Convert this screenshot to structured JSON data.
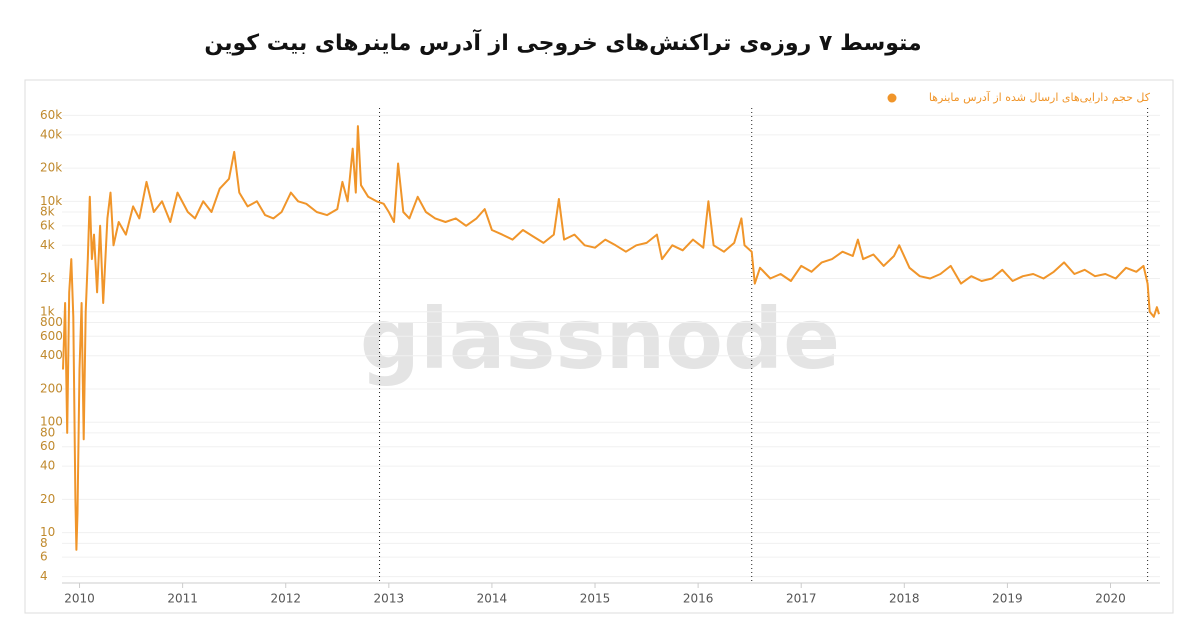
{
  "chart_data": {
    "type": "line",
    "title": "متوسط ۷ روزه‌ی تراکنش‌های خروجی از آدرس ماینرهای بیت کوین",
    "watermark": "glassnode",
    "yscale": "log",
    "grid": true,
    "legend": "top-right",
    "x": [
      2009.84,
      2009.86,
      2009.88,
      2009.9,
      2009.92,
      2009.94,
      2009.96,
      2009.97,
      2009.98,
      2010.0,
      2010.02,
      2010.04,
      2010.06,
      2010.08,
      2010.1,
      2010.12,
      2010.14,
      2010.17,
      2010.2,
      2010.23,
      2010.27,
      2010.3,
      2010.33,
      2010.38,
      2010.45,
      2010.52,
      2010.58,
      2010.65,
      2010.72,
      2010.8,
      2010.88,
      2010.95,
      2011.05,
      2011.12,
      2011.2,
      2011.28,
      2011.36,
      2011.45,
      2011.5,
      2011.55,
      2011.63,
      2011.72,
      2011.8,
      2011.88,
      2011.96,
      2012.05,
      2012.12,
      2012.2,
      2012.3,
      2012.4,
      2012.5,
      2012.55,
      2012.6,
      2012.65,
      2012.68,
      2012.7,
      2012.73,
      2012.8,
      2012.88,
      2012.95,
      2013.0,
      2013.05,
      2013.09,
      2013.14,
      2013.2,
      2013.28,
      2013.36,
      2013.45,
      2013.55,
      2013.65,
      2013.75,
      2013.85,
      2013.93,
      2014.0,
      2014.1,
      2014.2,
      2014.3,
      2014.4,
      2014.5,
      2014.6,
      2014.65,
      2014.7,
      2014.8,
      2014.9,
      2015.0,
      2015.1,
      2015.2,
      2015.3,
      2015.4,
      2015.5,
      2015.6,
      2015.65,
      2015.75,
      2015.85,
      2015.95,
      2016.05,
      2016.1,
      2016.15,
      2016.25,
      2016.35,
      2016.42,
      2016.45,
      2016.52,
      2016.55,
      2016.6,
      2016.7,
      2016.8,
      2016.9,
      2017.0,
      2017.1,
      2017.2,
      2017.3,
      2017.4,
      2017.5,
      2017.55,
      2017.6,
      2017.7,
      2017.8,
      2017.9,
      2017.95,
      2018.05,
      2018.15,
      2018.25,
      2018.35,
      2018.45,
      2018.55,
      2018.65,
      2018.75,
      2018.85,
      2018.95,
      2019.05,
      2019.15,
      2019.25,
      2019.35,
      2019.45,
      2019.55,
      2019.65,
      2019.75,
      2019.85,
      2019.95,
      2020.05,
      2020.15,
      2020.25,
      2020.32,
      2020.36,
      2020.38,
      2020.42,
      2020.45,
      2020.47
    ],
    "series": [
      {
        "name": "کل حجم دارایی‌های ارسال شده از آدرس ماینرها",
        "color": "#f0952a",
        "values": [
          300,
          1200,
          80,
          1500,
          3000,
          900,
          20,
          7,
          15,
          300,
          1200,
          70,
          1000,
          3000,
          11000,
          3000,
          5000,
          1500,
          6000,
          1200,
          7000,
          12000,
          4000,
          6500,
          5000,
          9000,
          7000,
          15000,
          8000,
          10000,
          6500,
          12000,
          8000,
          7000,
          10000,
          8000,
          13000,
          16000,
          28000,
          12000,
          9000,
          10000,
          7500,
          7000,
          8000,
          12000,
          10000,
          9500,
          8000,
          7500,
          8500,
          15000,
          10000,
          30000,
          12000,
          48000,
          14000,
          11000,
          10000,
          9500,
          8000,
          6500,
          22000,
          8000,
          7000,
          11000,
          8000,
          7000,
          6500,
          7000,
          6000,
          7000,
          8500,
          5500,
          5000,
          4500,
          5500,
          4800,
          4200,
          5000,
          10500,
          4500,
          5000,
          4000,
          3800,
          4500,
          4000,
          3500,
          4000,
          4200,
          5000,
          3000,
          4000,
          3600,
          4500,
          3800,
          10000,
          4000,
          3500,
          4200,
          7000,
          4000,
          3500,
          1800,
          2500,
          2000,
          2200,
          1900,
          2600,
          2300,
          2800,
          3000,
          3500,
          3200,
          4500,
          3000,
          3300,
          2600,
          3200,
          4000,
          2500,
          2100,
          2000,
          2200,
          2600,
          1800,
          2100,
          1900,
          2000,
          2400,
          1900,
          2100,
          2200,
          2000,
          2300,
          2800,
          2200,
          2400,
          2100,
          2200,
          2000,
          2500,
          2300,
          2600,
          1800,
          1000,
          900,
          1100,
          950
        ]
      }
    ],
    "vlines": [
      2012.91,
      2016.52,
      2020.36
    ],
    "xlim": [
      2009.83,
      2020.48
    ],
    "xticks": [
      2010,
      2011,
      2012,
      2013,
      2014,
      2015,
      2016,
      2017,
      2018,
      2019,
      2020
    ],
    "ylim": [
      3.5,
      70000
    ],
    "yticks": [
      4,
      6,
      8,
      10,
      20,
      40,
      60,
      80,
      100,
      200,
      400,
      600,
      800,
      {
        "value": 1000,
        "label": "1k"
      },
      {
        "value": 2000,
        "label": "2k"
      },
      {
        "value": 4000,
        "label": "4k"
      },
      {
        "value": 6000,
        "label": "6k"
      },
      {
        "value": 8000,
        "label": "8k"
      },
      {
        "value": 10000,
        "label": "10k"
      },
      {
        "value": 20000,
        "label": "20k"
      },
      {
        "value": 40000,
        "label": "40k"
      },
      {
        "value": 60000,
        "label": "60k"
      }
    ]
  }
}
